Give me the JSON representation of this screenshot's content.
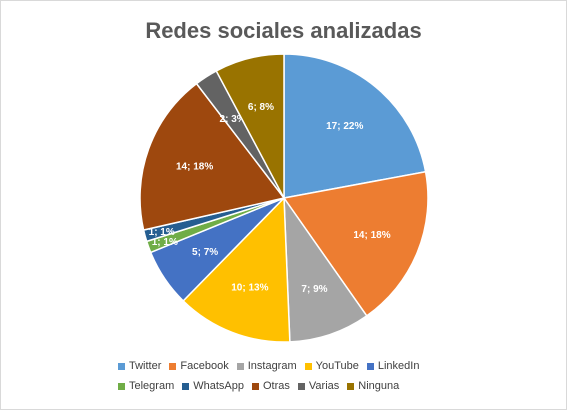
{
  "chart_data": {
    "type": "pie",
    "title": "Redes sociales analizadas",
    "slices": [
      {
        "label": "Twitter",
        "value": 17,
        "percent": "22%",
        "color": "#5B9BD5"
      },
      {
        "label": "Facebook",
        "value": 14,
        "percent": "18%",
        "color": "#ED7D31"
      },
      {
        "label": "Instagram",
        "value": 7,
        "percent": "9%",
        "color": "#A5A5A5"
      },
      {
        "label": "YouTube",
        "value": 10,
        "percent": "13%",
        "color": "#FFC000"
      },
      {
        "label": "LinkedIn",
        "value": 5,
        "percent": "7%",
        "color": "#4472C4"
      },
      {
        "label": "Telegram",
        "value": 1,
        "percent": "1%",
        "color": "#70AD47"
      },
      {
        "label": "WhatsApp",
        "value": 1,
        "percent": "1%",
        "color": "#255E91"
      },
      {
        "label": "Otras",
        "value": 14,
        "percent": "18%",
        "color": "#9E480E"
      },
      {
        "label": "Varias",
        "value": 2,
        "percent": "3%",
        "color": "#636363"
      },
      {
        "label": "Ninguna",
        "value": 6,
        "percent": "8%",
        "color": "#997300"
      }
    ],
    "data_labels": [
      "17; 22%",
      "14; 18%",
      "7; 9%",
      "10; 13%",
      "5; 7%",
      "1; 1%",
      "1; 1%",
      "14; 18%",
      "2; 3%",
      "6; 8%"
    ],
    "legend_position": "bottom"
  }
}
